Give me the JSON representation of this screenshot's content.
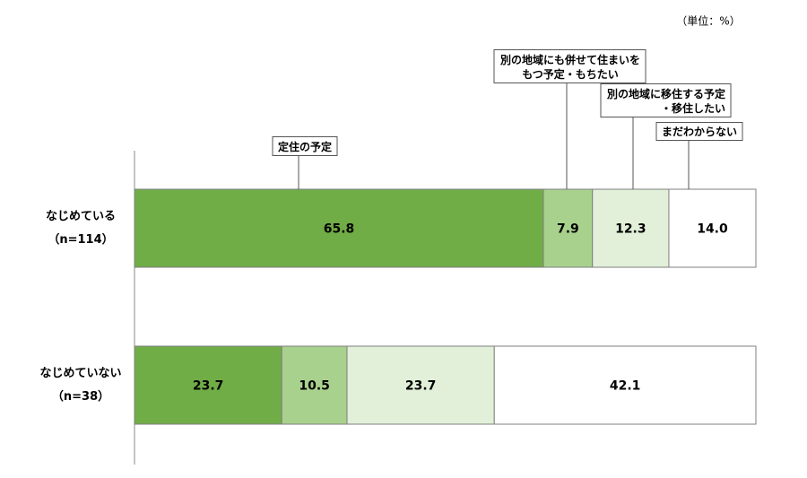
{
  "chart_data": {
    "type": "stacked-barh",
    "unit_note": "（単位：%）",
    "categories": [
      [
        "なじめている",
        "（n=114）"
      ],
      [
        "なじめていない",
        "（n=38）"
      ]
    ],
    "xlim": [
      0,
      100
    ],
    "series": [
      {
        "name": "定住の予定",
        "color": "#70ad47",
        "values": [
          65.8,
          23.7
        ]
      },
      {
        "name": "別の地域にも併せて住まいを\nもつ予定・もちたい",
        "color": "#a9d18e",
        "values": [
          7.9,
          10.5
        ]
      },
      {
        "name": "別の地域に移住する予定\n・移住したい",
        "color": "#e2f0d9",
        "values": [
          12.3,
          23.7
        ]
      },
      {
        "name": "まだわからない",
        "color": "#ffffff",
        "values": [
          14.0,
          42.1
        ],
        "value_labels": [
          "14.0",
          "42.1"
        ]
      }
    ]
  }
}
